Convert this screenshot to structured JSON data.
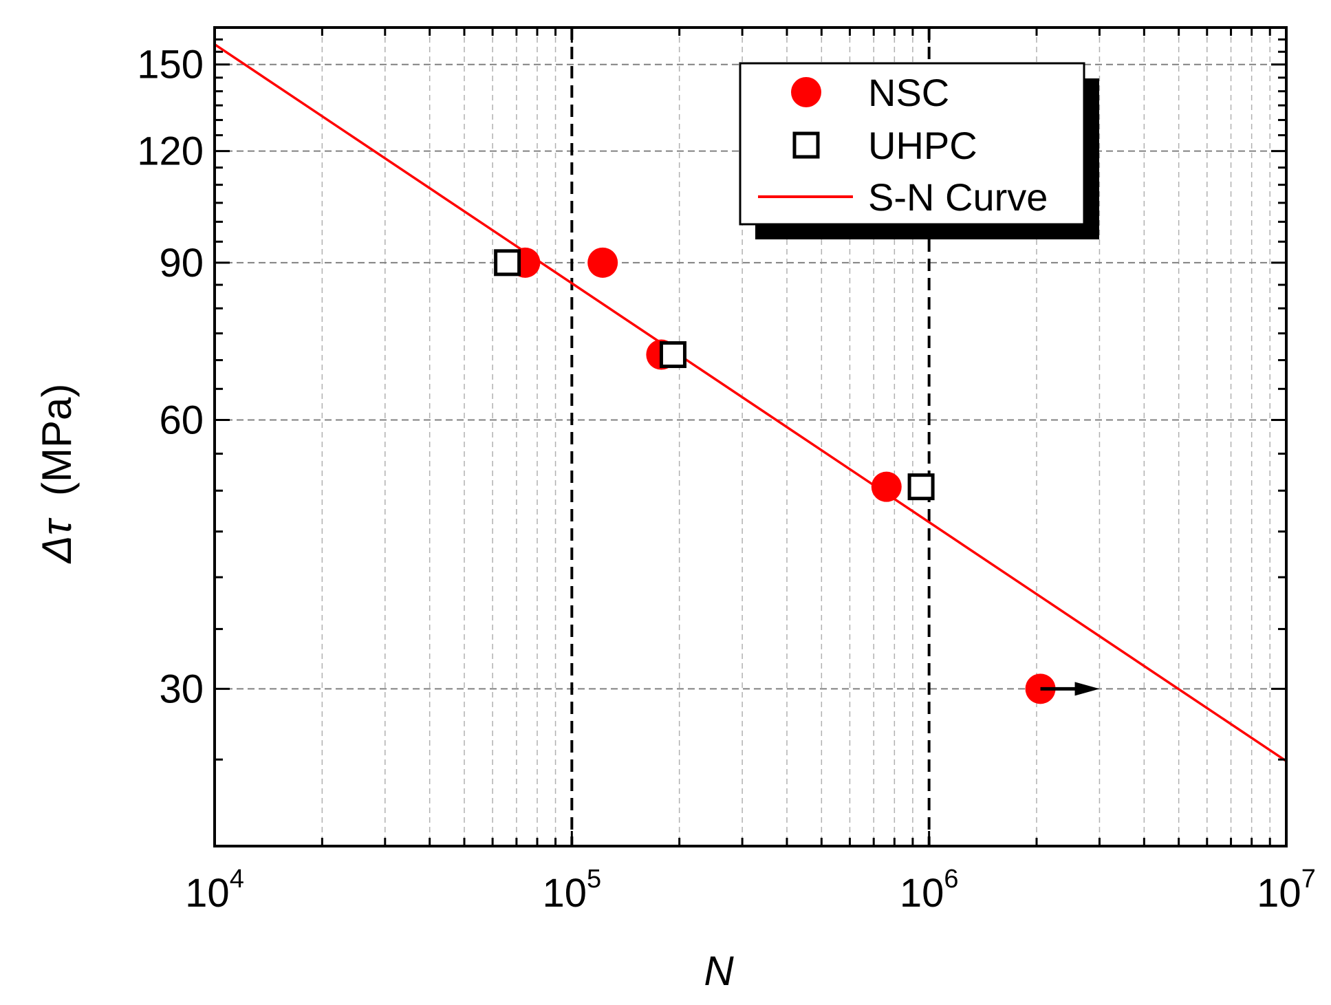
{
  "chart_data": {
    "type": "scatter",
    "title": "",
    "xlabel": "N",
    "ylabel_symbol": "Δτ",
    "ylabel_unit": "(MPa)",
    "x_scale": "log",
    "y_scale": "log",
    "xlim": [
      10000,
      10000000
    ],
    "ylim": [
      20,
      165
    ],
    "x_ticks": [
      {
        "value": 10000,
        "base": "10",
        "exp": "4"
      },
      {
        "value": 100000,
        "base": "10",
        "exp": "5"
      },
      {
        "value": 1000000,
        "base": "10",
        "exp": "6"
      },
      {
        "value": 10000000,
        "base": "10",
        "exp": "7"
      }
    ],
    "y_ticks": [
      {
        "value": 30,
        "label": "30"
      },
      {
        "value": 60,
        "label": "60"
      },
      {
        "value": 90,
        "label": "90"
      },
      {
        "value": 120,
        "label": "120"
      },
      {
        "value": 150,
        "label": "150"
      }
    ],
    "grid": true,
    "reference_lines_x": [
      100000,
      1000000
    ],
    "legend_position": "top-right",
    "series": [
      {
        "name": "NSC",
        "marker": "filled-circle",
        "color": "#ff0000",
        "points": [
          {
            "x": 74000,
            "y": 90
          },
          {
            "x": 122000,
            "y": 90
          },
          {
            "x": 178000,
            "y": 71
          },
          {
            "x": 760000,
            "y": 50.5
          },
          {
            "x": 2050000,
            "y": 30,
            "runout": true
          }
        ]
      },
      {
        "name": "UHPC",
        "marker": "open-square",
        "color": "#000000",
        "points": [
          {
            "x": 66000,
            "y": 90
          },
          {
            "x": 192000,
            "y": 71
          },
          {
            "x": 950000,
            "y": 50.5
          }
        ]
      },
      {
        "name": "S-N Curve",
        "marker": "line",
        "color": "#ff0000",
        "points": [
          {
            "x": 10000,
            "y": 158
          },
          {
            "x": 10000000,
            "y": 24.9
          }
        ]
      }
    ]
  }
}
